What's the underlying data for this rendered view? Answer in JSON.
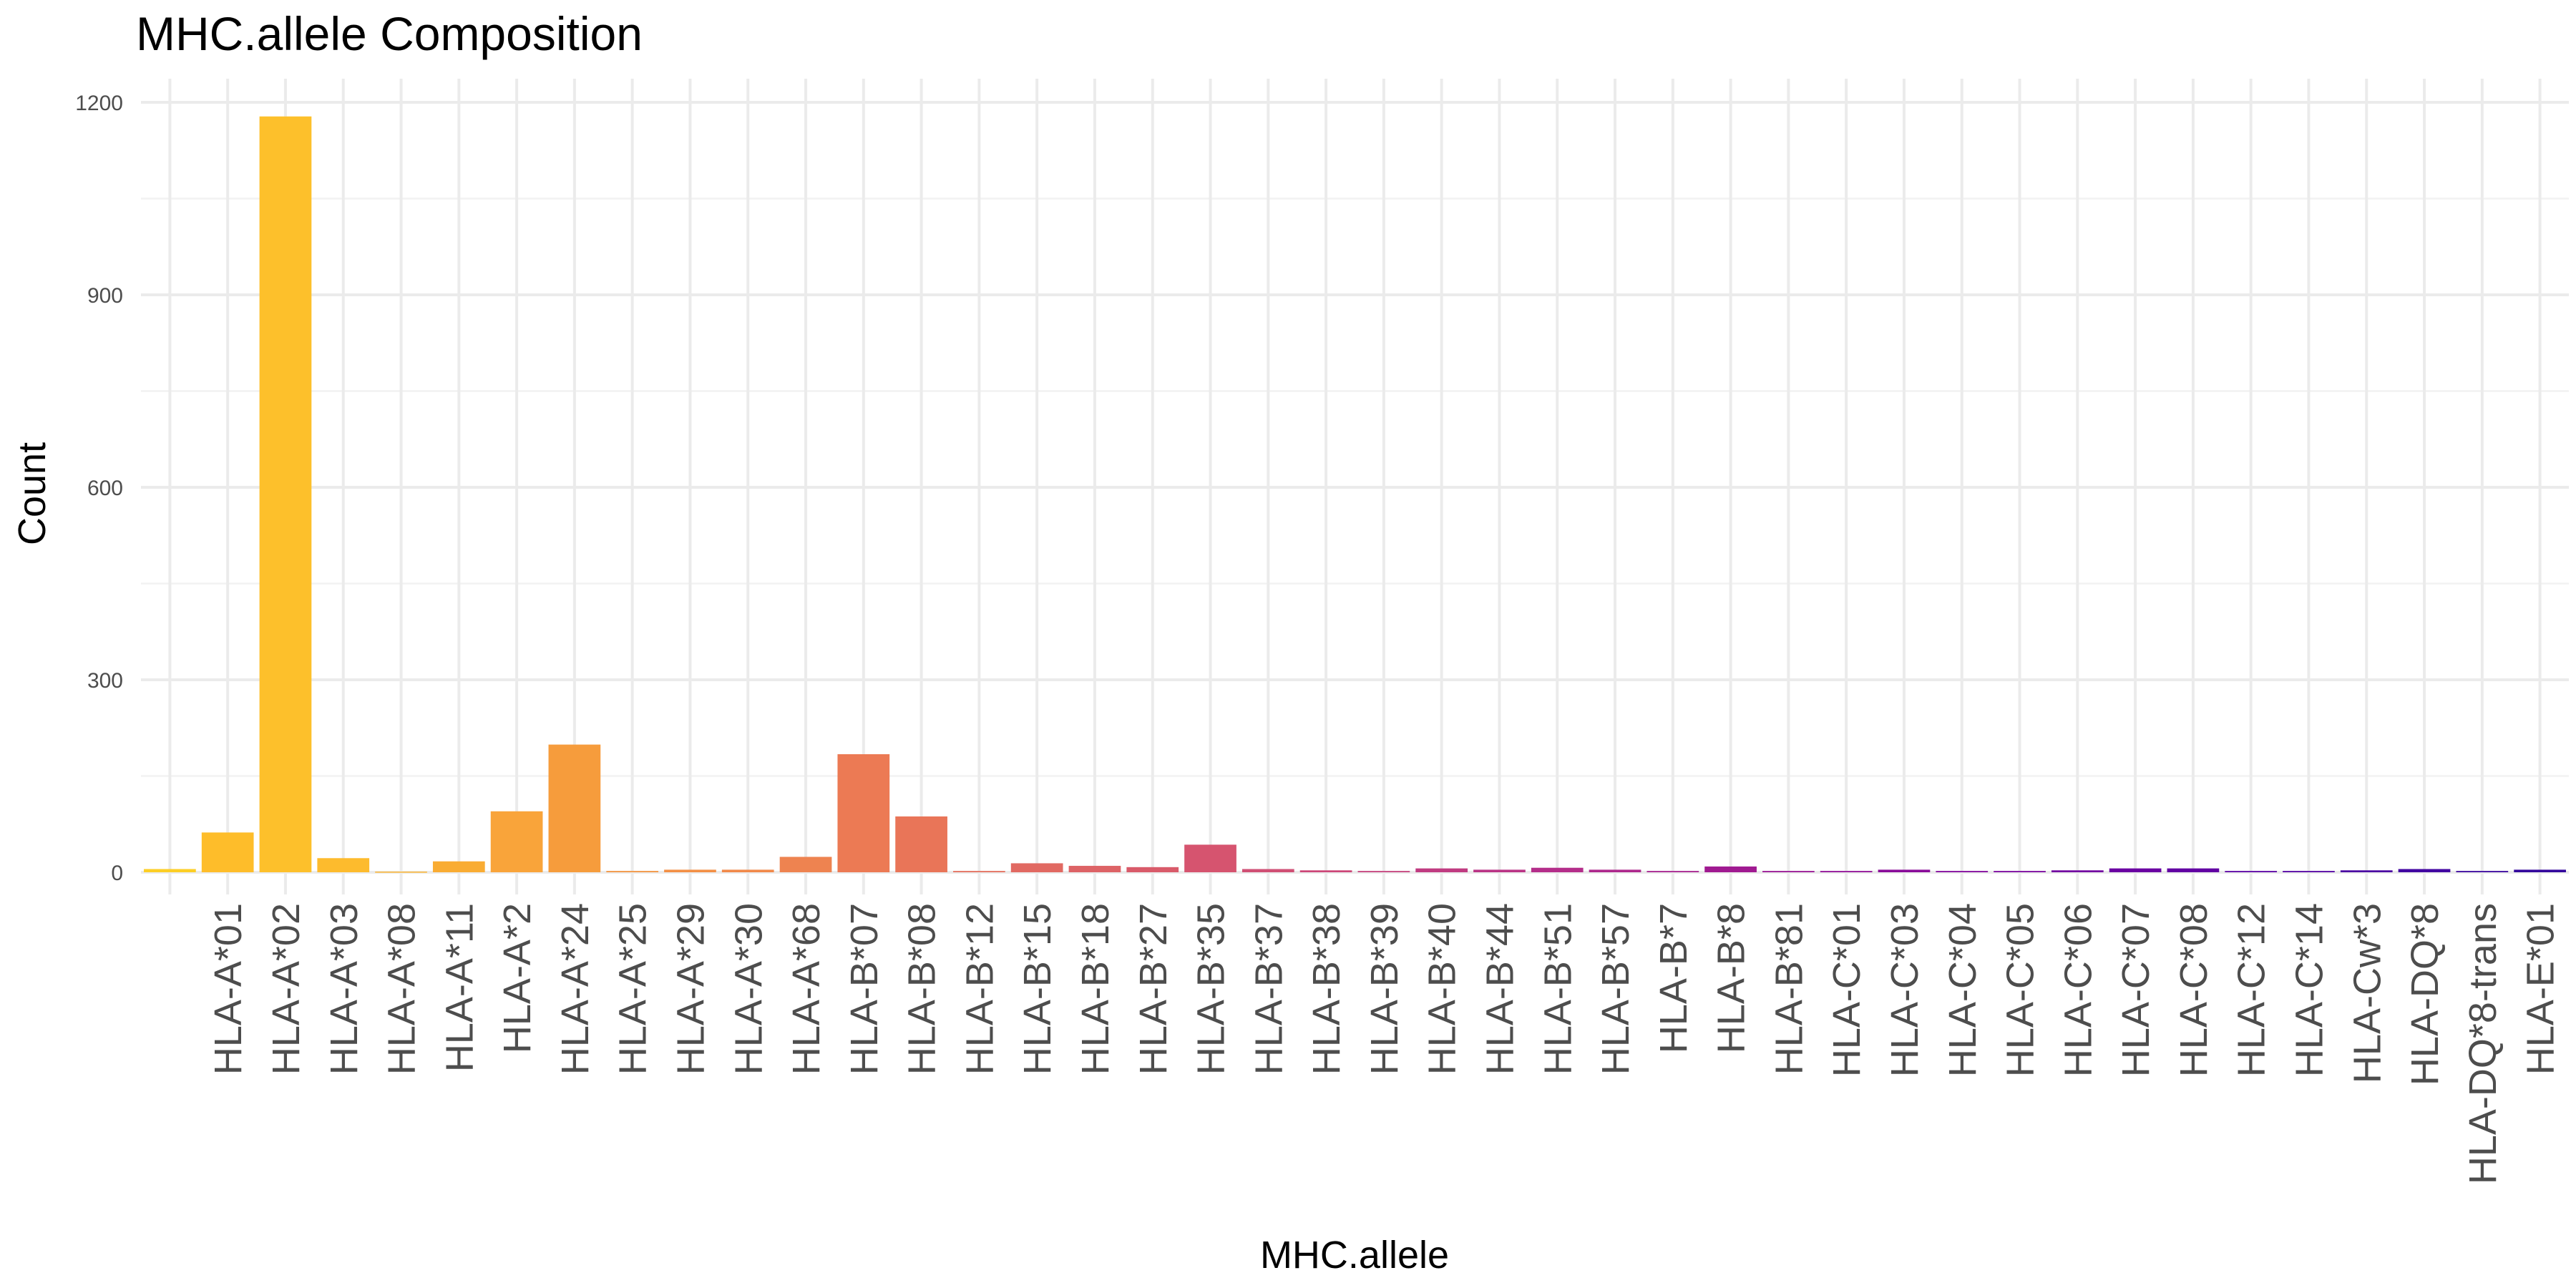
{
  "chart_data": {
    "type": "bar",
    "title": "MHC.allele Composition",
    "xlabel": "MHC.allele",
    "ylabel": "Count",
    "ylim": [
      0,
      1230
    ],
    "yticks": [
      0,
      300,
      600,
      900,
      1200
    ],
    "grid": true,
    "legend": "none",
    "categories": [
      "",
      "HLA-A*01",
      "HLA-A*02",
      "HLA-A*03",
      "HLA-A*08",
      "HLA-A*11",
      "HLA-A*2",
      "HLA-A*24",
      "HLA-A*25",
      "HLA-A*29",
      "HLA-A*30",
      "HLA-A*68",
      "HLA-B*07",
      "HLA-B*08",
      "HLA-B*12",
      "HLA-B*15",
      "HLA-B*18",
      "HLA-B*27",
      "HLA-B*35",
      "HLA-B*37",
      "HLA-B*38",
      "HLA-B*39",
      "HLA-B*40",
      "HLA-B*44",
      "HLA-B*51",
      "HLA-B*57",
      "HLA-B*7",
      "HLA-B*8",
      "HLA-B*81",
      "HLA-C*01",
      "HLA-C*03",
      "HLA-C*04",
      "HLA-C*05",
      "HLA-C*06",
      "HLA-C*07",
      "HLA-C*08",
      "HLA-C*12",
      "HLA-C*14",
      "HLA-Cw*3",
      "HLA-DQ*8",
      "HLA-DQ*8-trans",
      "HLA-E*01"
    ],
    "values": [
      5,
      62,
      1178,
      22,
      1,
      17,
      95,
      199,
      2,
      4,
      4,
      24,
      184,
      87,
      2,
      14,
      10,
      8,
      43,
      5,
      3,
      2,
      6,
      4,
      7,
      4,
      2,
      9,
      2,
      2,
      4,
      2,
      2,
      3,
      6,
      6,
      2,
      2,
      3,
      5,
      2,
      4
    ],
    "colors": [
      "#fcce25",
      "#febd2a",
      "#fdc02b",
      "#fdbb2d",
      "#fbb532",
      "#f9ac33",
      "#f9a43a",
      "#f69c3c",
      "#f4953f",
      "#f38f45",
      "#f1894a",
      "#ee8350",
      "#ec7a54",
      "#e97558",
      "#e56f5d",
      "#e16962",
      "#dd6366",
      "#d95b6a",
      "#d6546f",
      "#d04f74",
      "#cc4778",
      "#c6427d",
      "#c03b81",
      "#ba3485",
      "#b42e8a",
      "#ad288c",
      "#a7218f",
      "#a01a91",
      "#981495",
      "#910f98",
      "#890c99",
      "#81059d",
      "#7a049f",
      "#7203a1",
      "#6a01a2",
      "#6201a3",
      "#5b01a5",
      "#5301a4",
      "#4a02a2",
      "#4203a1",
      "#3a049f",
      "#33059c"
    ]
  }
}
